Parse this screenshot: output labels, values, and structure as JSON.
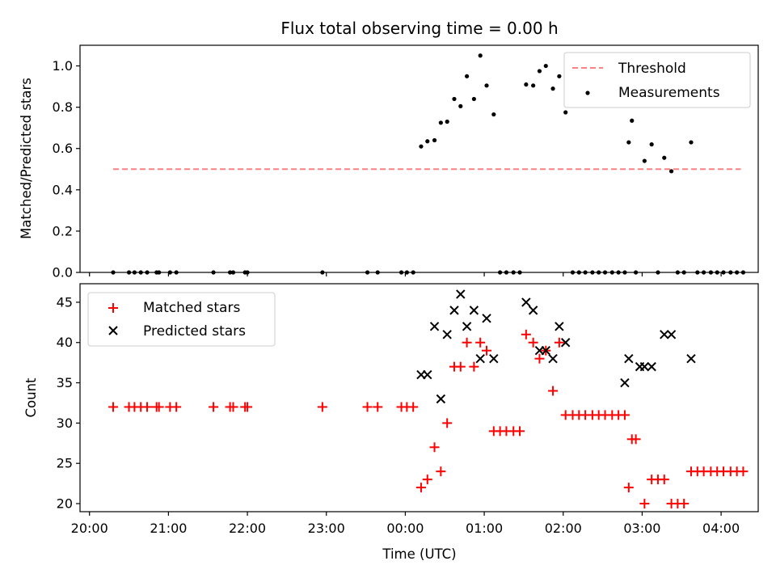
{
  "chart_data": [
    {
      "type": "scatter",
      "title": "Flux total observing time = 0.00 h",
      "xlabel": "",
      "ylabel": "Matched/Predicted stars",
      "xlim": [
        -0.12,
        8.47
      ],
      "ylim": [
        0,
        1.1
      ],
      "x_unit": "hours since 20:00 UTC",
      "y_ticks": [
        0.0,
        0.2,
        0.4,
        0.6,
        0.8,
        1.0
      ],
      "y_tick_labels": [
        "0.0",
        "0.2",
        "0.4",
        "0.6",
        "0.8",
        "1.0"
      ],
      "grid": false,
      "legend": "top-right",
      "threshold": {
        "name": "Threshold",
        "y": 0.5,
        "x_range": [
          0.3,
          8.25
        ],
        "color": "#ff8080"
      },
      "series": [
        {
          "name": "Measurements",
          "marker": "dot",
          "color": "#000000",
          "x": [
            0.3,
            0.5,
            0.57,
            0.65,
            0.73,
            0.85,
            0.88,
            1.02,
            1.1,
            1.57,
            1.78,
            1.82,
            1.97,
            2.0,
            2.95,
            3.52,
            3.65,
            3.95,
            4.02,
            4.1,
            4.2,
            4.28,
            4.37,
            4.45,
            4.53,
            4.62,
            4.7,
            4.78,
            4.87,
            4.95,
            5.03,
            5.12,
            5.2,
            5.28,
            5.37,
            5.45,
            5.53,
            5.62,
            5.7,
            5.78,
            5.87,
            5.95,
            6.03,
            6.12,
            6.2,
            6.28,
            6.37,
            6.45,
            6.53,
            6.62,
            6.7,
            6.78,
            6.83,
            6.87,
            6.92,
            7.03,
            7.12,
            7.2,
            7.28,
            7.37,
            7.45,
            7.53,
            7.62,
            7.7,
            7.78,
            7.87,
            7.95,
            8.03,
            8.12,
            8.2,
            8.28
          ],
          "y": [
            0,
            0,
            0,
            0,
            0,
            0,
            0,
            0,
            0,
            0,
            0,
            0,
            0,
            0,
            0,
            0,
            0,
            0,
            0,
            0,
            0.61,
            0.635,
            0.64,
            0.725,
            0.73,
            0.84,
            0.805,
            0.95,
            0.84,
            1.05,
            0.905,
            0.765,
            0,
            0,
            0,
            0,
            0.91,
            0.905,
            0.975,
            1.0,
            0.89,
            0.95,
            0.775,
            0,
            0,
            0,
            0,
            0,
            0,
            0,
            0,
            0,
            0.63,
            0.735,
            0,
            0.54,
            0.62,
            0,
            0.555,
            0.49,
            0,
            0,
            0.63,
            0,
            0,
            0,
            0,
            0,
            0,
            0,
            0
          ]
        }
      ]
    },
    {
      "type": "scatter",
      "title": "",
      "xlabel": "Time (UTC)",
      "ylabel": "Count",
      "xlim": [
        -0.12,
        8.47
      ],
      "ylim": [
        19,
        47.3
      ],
      "x_unit": "hours since 20:00 UTC",
      "x_ticks": [
        0,
        1,
        2,
        3,
        4,
        5,
        6,
        7,
        8
      ],
      "x_tick_labels": [
        "20:00",
        "21:00",
        "22:00",
        "23:00",
        "00:00",
        "01:00",
        "02:00",
        "03:00",
        "04:00"
      ],
      "y_ticks": [
        20,
        25,
        30,
        35,
        40,
        45
      ],
      "y_tick_labels": [
        "20",
        "25",
        "30",
        "35",
        "40",
        "45"
      ],
      "grid": false,
      "legend": "top-left",
      "series": [
        {
          "name": "Matched stars",
          "marker": "plus",
          "color": "#ff0000",
          "x": [
            0.3,
            0.5,
            0.57,
            0.65,
            0.73,
            0.85,
            0.88,
            1.02,
            1.1,
            1.57,
            1.78,
            1.82,
            1.97,
            2.0,
            2.95,
            3.52,
            3.65,
            3.95,
            4.02,
            4.1,
            4.2,
            4.28,
            4.37,
            4.45,
            4.53,
            4.62,
            4.7,
            4.78,
            4.87,
            4.95,
            5.03,
            5.12,
            5.2,
            5.28,
            5.37,
            5.45,
            5.53,
            5.62,
            5.7,
            5.78,
            5.87,
            5.95,
            6.03,
            6.12,
            6.2,
            6.28,
            6.37,
            6.45,
            6.53,
            6.62,
            6.7,
            6.78,
            6.83,
            6.87,
            6.92,
            7.03,
            7.12,
            7.2,
            7.28,
            7.37,
            7.45,
            7.53,
            7.62,
            7.7,
            7.78,
            7.87,
            7.95,
            8.03,
            8.12,
            8.2,
            8.28
          ],
          "y": [
            32,
            32,
            32,
            32,
            32,
            32,
            32,
            32,
            32,
            32,
            32,
            32,
            32,
            32,
            32,
            32,
            32,
            32,
            32,
            32,
            22,
            23,
            27,
            24,
            30,
            37,
            37,
            40,
            37,
            40,
            39,
            29,
            29,
            29,
            29,
            29,
            41,
            40,
            38,
            39,
            34,
            40,
            31,
            31,
            31,
            31,
            31,
            31,
            31,
            31,
            31,
            31,
            22,
            28,
            28,
            20,
            23,
            23,
            23,
            20,
            20,
            20,
            24,
            24,
            24,
            24,
            24,
            24,
            24,
            24,
            24
          ]
        },
        {
          "name": "Predicted stars",
          "marker": "x",
          "color": "#000000",
          "x": [
            4.2,
            4.28,
            4.37,
            4.45,
            4.53,
            4.62,
            4.7,
            4.78,
            4.87,
            4.95,
            5.03,
            5.12,
            5.53,
            5.62,
            5.7,
            5.78,
            5.87,
            5.95,
            6.03,
            6.78,
            6.83,
            6.97,
            7.03,
            7.12,
            7.28,
            7.37,
            7.62
          ],
          "y": [
            36,
            36,
            42,
            33,
            41,
            44,
            46,
            42,
            44,
            38,
            43,
            38,
            45,
            44,
            39,
            39,
            38,
            42,
            40,
            35,
            38,
            37,
            37,
            37,
            41,
            41,
            38
          ]
        }
      ]
    }
  ]
}
